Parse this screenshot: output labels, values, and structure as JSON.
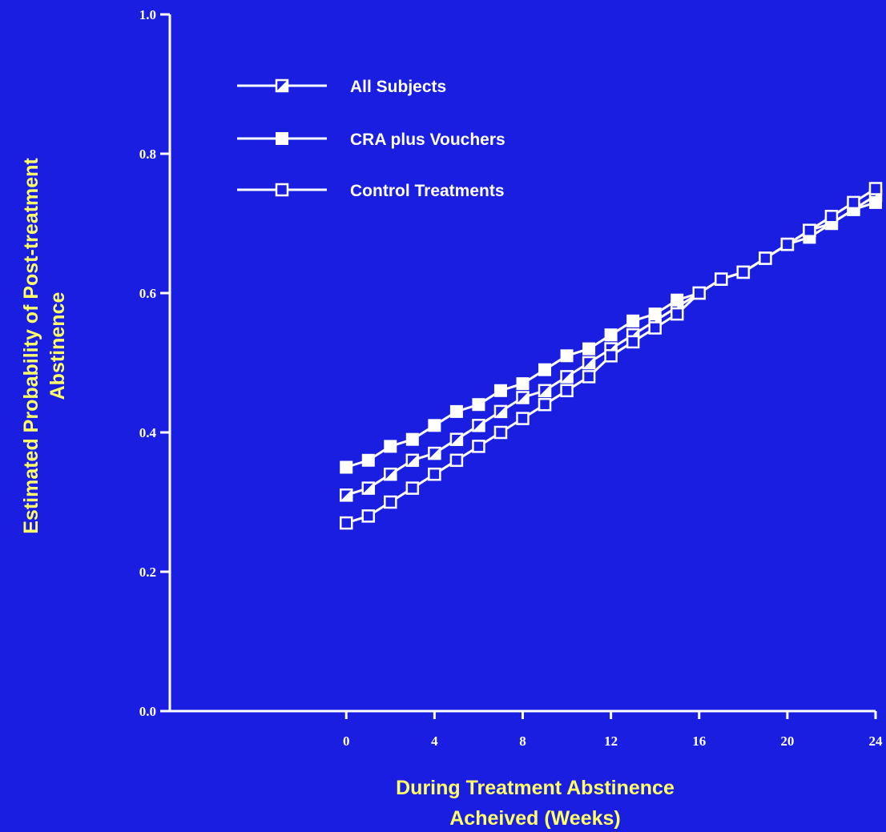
{
  "colors": {
    "background": "#1a1ee0",
    "foreground": "#ffffff",
    "axis_title": "#ffff66"
  },
  "chart_data": {
    "type": "line",
    "title": "",
    "xlabel_lines": [
      "During Treatment Abstinence",
      "Acheived (Weeks)"
    ],
    "ylabel_lines": [
      "Estimated Probability of Post-treatment",
      "Abstinence"
    ],
    "xlim": [
      -8,
      24
    ],
    "ylim": [
      0,
      1
    ],
    "xticks": [
      0,
      4,
      8,
      12,
      16,
      20,
      24
    ],
    "xtick_labels": [
      "0",
      "4",
      "8",
      "12",
      "16",
      "20",
      "24"
    ],
    "yticks": [
      0,
      0.2,
      0.4,
      0.6,
      0.8,
      1.0
    ],
    "ytick_labels": [
      "0.0",
      "0.2",
      "0.4",
      "0.6",
      "0.8",
      "1.0"
    ],
    "grid": false,
    "legend_position": "top-left",
    "x": [
      0,
      1,
      2,
      3,
      4,
      5,
      6,
      7,
      8,
      9,
      10,
      11,
      12,
      13,
      14,
      15,
      16,
      17,
      18,
      19,
      20,
      21,
      22,
      23,
      24
    ],
    "series": [
      {
        "name": "All Subjects",
        "marker": "half-filled-square",
        "values": [
          0.31,
          0.32,
          0.34,
          0.36,
          0.37,
          0.39,
          0.41,
          0.43,
          0.45,
          0.46,
          0.48,
          0.5,
          0.52,
          0.54,
          0.56,
          0.58,
          0.6,
          0.62,
          0.63,
          0.65,
          0.67,
          0.69,
          0.7,
          0.72,
          0.74
        ]
      },
      {
        "name": "CRA plus Vouchers",
        "marker": "filled-square",
        "values": [
          0.35,
          0.36,
          0.38,
          0.39,
          0.41,
          0.43,
          0.44,
          0.46,
          0.47,
          0.49,
          0.51,
          0.52,
          0.54,
          0.56,
          0.57,
          0.59,
          0.6,
          0.62,
          0.63,
          0.65,
          0.67,
          0.68,
          0.7,
          0.72,
          0.73
        ]
      },
      {
        "name": "Control Treatments",
        "marker": "open-square",
        "values": [
          0.27,
          0.28,
          0.3,
          0.32,
          0.34,
          0.36,
          0.38,
          0.4,
          0.42,
          0.44,
          0.46,
          0.48,
          0.51,
          0.53,
          0.55,
          0.57,
          0.6,
          0.62,
          0.63,
          0.65,
          0.67,
          0.69,
          0.71,
          0.73,
          0.75
        ]
      }
    ]
  }
}
